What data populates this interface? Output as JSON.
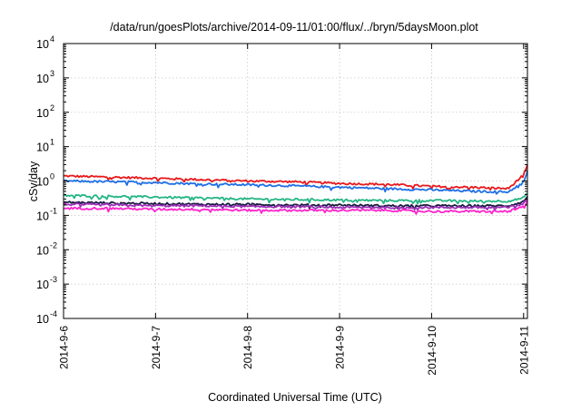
{
  "chart_data": {
    "type": "line",
    "title": "/data/run/goesPlots/archive/2014-09-11/01:00/flux/../bryn/5daysMoon.plot",
    "xlabel": "Coordinated Universal Time (UTC)",
    "ylabel": "cSv/day",
    "y_scale": "log",
    "ylim": [
      0.0001,
      10000
    ],
    "xlim": [
      "2014-09-06 00:00",
      "2014-09-11 01:00"
    ],
    "grid": true,
    "legend": "none",
    "x_ticks": [
      "2014-9-6",
      "2014-9-7",
      "2014-9-8",
      "2014-9-9",
      "2014-9-10",
      "2014-9-11"
    ],
    "y_ticks": [
      {
        "base": "10",
        "exp": "4",
        "value": 10000
      },
      {
        "base": "10",
        "exp": "3",
        "value": 1000
      },
      {
        "base": "10",
        "exp": "2",
        "value": 100
      },
      {
        "base": "10",
        "exp": "1",
        "value": 10
      },
      {
        "base": "10",
        "exp": "0",
        "value": 1
      },
      {
        "base": "10",
        "exp": "-1",
        "value": 0.1
      },
      {
        "base": "10",
        "exp": "-2",
        "value": 0.01
      },
      {
        "base": "10",
        "exp": "-3",
        "value": 0.001
      },
      {
        "base": "10",
        "exp": "-4",
        "value": 0.0001
      }
    ],
    "x": [
      "2014-09-06 00:00",
      "2014-09-06 12:00",
      "2014-09-07 00:00",
      "2014-09-07 12:00",
      "2014-09-08 00:00",
      "2014-09-08 12:00",
      "2014-09-09 00:00",
      "2014-09-09 12:00",
      "2014-09-10 00:00",
      "2014-09-10 12:00",
      "2014-09-10 20:00",
      "2014-09-11 00:00",
      "2014-09-11 01:00"
    ],
    "series": [
      {
        "color": "#e8191c",
        "values": [
          1.4,
          1.3,
          1.2,
          1.1,
          1.0,
          0.95,
          0.85,
          0.8,
          0.7,
          0.65,
          0.6,
          1.5,
          2.8
        ]
      },
      {
        "color": "#1f6fe5",
        "values": [
          1.0,
          0.95,
          0.9,
          0.82,
          0.78,
          0.72,
          0.66,
          0.6,
          0.55,
          0.5,
          0.48,
          0.95,
          1.8
        ]
      },
      {
        "color": "#25b585",
        "values": [
          0.38,
          0.36,
          0.34,
          0.32,
          0.3,
          0.29,
          0.28,
          0.27,
          0.27,
          0.26,
          0.26,
          0.32,
          0.45
        ]
      },
      {
        "color": "#1a1a40",
        "values": [
          0.24,
          0.23,
          0.22,
          0.21,
          0.21,
          0.2,
          0.2,
          0.19,
          0.19,
          0.19,
          0.19,
          0.25,
          0.36
        ]
      },
      {
        "color": "#9b2fb8",
        "values": [
          0.21,
          0.2,
          0.19,
          0.19,
          0.18,
          0.18,
          0.17,
          0.17,
          0.17,
          0.17,
          0.17,
          0.22,
          0.3
        ]
      },
      {
        "color": "#ff22cc",
        "values": [
          0.16,
          0.16,
          0.15,
          0.15,
          0.14,
          0.14,
          0.14,
          0.14,
          0.13,
          0.13,
          0.13,
          0.18,
          0.25
        ]
      }
    ]
  }
}
